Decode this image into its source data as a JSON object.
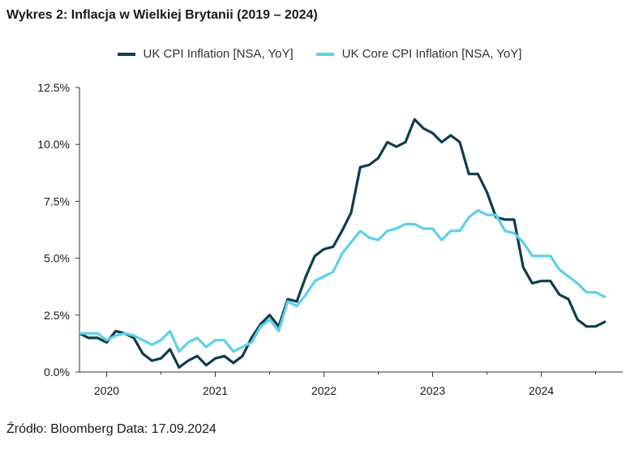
{
  "title": "Wykres 2: Inflacja w Wielkiej Brytanii (2019 – 2024)",
  "source": "Źródło: Bloomberg Data: 17.09.2024",
  "chart_data": {
    "type": "line",
    "title": "Wykres 2: Inflacja w Wielkiej Brytanii (2019 – 2024)",
    "xlabel": "",
    "ylabel": "",
    "ylim": [
      0,
      12.5
    ],
    "yticks": [
      "0.0%",
      "2.5%",
      "5.0%",
      "7.5%",
      "10.0%",
      "12.5%"
    ],
    "ytick_values": [
      0,
      2.5,
      5,
      7.5,
      10,
      12.5
    ],
    "xticks": [
      "2020",
      "2021",
      "2022",
      "2023",
      "2024"
    ],
    "xtick_values": [
      2020.0,
      2021.0,
      2022.0,
      2023.0,
      2024.0
    ],
    "xlim": [
      2019.75,
      2024.75
    ],
    "x_start": "2019-10",
    "legend_position": "top-center",
    "series": [
      {
        "name": "UK CPI Inflation [NSA, YoY]",
        "color": "#0f3d4c",
        "values": [
          1.7,
          1.5,
          1.5,
          1.3,
          1.8,
          1.7,
          1.5,
          0.8,
          0.5,
          0.6,
          1.0,
          0.2,
          0.5,
          0.7,
          0.3,
          0.6,
          0.7,
          0.4,
          0.7,
          1.5,
          2.1,
          2.5,
          2.0,
          3.2,
          3.1,
          4.2,
          5.1,
          5.4,
          5.5,
          6.2,
          7.0,
          9.0,
          9.1,
          9.4,
          10.1,
          9.9,
          10.1,
          11.1,
          10.7,
          10.5,
          10.1,
          10.4,
          10.1,
          8.7,
          8.7,
          7.9,
          6.8,
          6.7,
          6.7,
          4.6,
          3.9,
          4.0,
          4.0,
          3.4,
          3.2,
          2.3,
          2.0,
          2.0,
          2.2
        ]
      },
      {
        "name": "UK Core CPI Inflation [NSA, YoY]",
        "color": "#5dd0ea",
        "values": [
          1.7,
          1.7,
          1.7,
          1.4,
          1.6,
          1.7,
          1.6,
          1.4,
          1.2,
          1.4,
          1.8,
          0.9,
          1.3,
          1.5,
          1.1,
          1.4,
          1.4,
          0.9,
          1.1,
          1.3,
          2.0,
          2.3,
          1.8,
          3.1,
          2.9,
          3.4,
          4.0,
          4.2,
          4.4,
          5.2,
          5.7,
          6.2,
          5.9,
          5.8,
          6.2,
          6.3,
          6.5,
          6.5,
          6.3,
          6.3,
          5.8,
          6.2,
          6.2,
          6.8,
          7.1,
          6.9,
          6.9,
          6.2,
          6.1,
          5.7,
          5.1,
          5.1,
          5.1,
          4.5,
          4.2,
          3.9,
          3.5,
          3.5,
          3.3
        ]
      }
    ]
  }
}
